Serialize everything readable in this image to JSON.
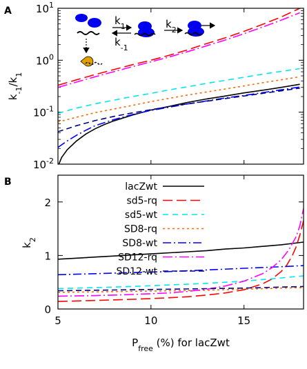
{
  "chart_data": [
    {
      "panel": "A",
      "type": "line",
      "ylabel": "k-1/k1",
      "ylabel_main": "k",
      "ylabel_sub1": "-1",
      "ylabel_mid": "/k",
      "ylabel_sub2": "1",
      "yscale": "log",
      "xlim": [
        5,
        18.2
      ],
      "ylim": [
        0.01,
        10
      ],
      "xticks": [
        5,
        10,
        15
      ],
      "yticks": [
        {
          "value": 0.01,
          "base": "10",
          "exp": "-2"
        },
        {
          "value": 0.1,
          "base": "10",
          "exp": "-1"
        },
        {
          "value": 1,
          "base": "10",
          "exp": "0"
        },
        {
          "value": 10,
          "base": "10",
          "exp": "1"
        }
      ],
      "show_xtick_labels": false,
      "inset": {
        "k1": "k",
        "k1_sub": "1",
        "km1": "k",
        "km1_sub": "-1",
        "k2": "k",
        "k2_sub": "2"
      },
      "series": [
        {
          "name": "lacZwt",
          "color": "#000000",
          "dash": "",
          "x": [
            5.05,
            5.2,
            5.5,
            6,
            6.5,
            7,
            7.5,
            8,
            9,
            10,
            11,
            12,
            13,
            14,
            15,
            16,
            17,
            18
          ],
          "y": [
            0.01,
            0.0135,
            0.019,
            0.028,
            0.038,
            0.048,
            0.058,
            0.068,
            0.088,
            0.11,
            0.13,
            0.155,
            0.18,
            0.205,
            0.235,
            0.265,
            0.3,
            0.345
          ]
        },
        {
          "name": "sd5-rq",
          "color": "#ff0000",
          "dash": "14,6",
          "x": [
            5,
            6,
            7,
            8,
            9,
            10,
            11,
            12,
            13,
            14,
            15,
            16,
            17,
            18
          ],
          "y": [
            0.33,
            0.42,
            0.53,
            0.66,
            0.82,
            1.0,
            1.25,
            1.6,
            2.1,
            2.7,
            3.6,
            4.9,
            6.8,
            10.0
          ]
        },
        {
          "name": "sd5-wt",
          "color": "#00e5ee",
          "dash": "8,6",
          "x": [
            5,
            6,
            7,
            8,
            9,
            10,
            11,
            12,
            13,
            14,
            15,
            16,
            17,
            18
          ],
          "y": [
            0.095,
            0.12,
            0.145,
            0.17,
            0.2,
            0.23,
            0.27,
            0.31,
            0.36,
            0.41,
            0.47,
            0.54,
            0.61,
            0.69
          ]
        },
        {
          "name": "SD8-rq",
          "color": "#ff6600",
          "dash": "3,4",
          "x": [
            5,
            6,
            7,
            8,
            9,
            10,
            11,
            12,
            13,
            14,
            15,
            16,
            17,
            18
          ],
          "y": [
            0.065,
            0.08,
            0.098,
            0.115,
            0.135,
            0.16,
            0.185,
            0.215,
            0.245,
            0.28,
            0.32,
            0.37,
            0.42,
            0.48
          ]
        },
        {
          "name": "SD8-wt",
          "color": "#0000ff",
          "dash": "12,4,2,4",
          "x": [
            5,
            5.5,
            6,
            6.5,
            7,
            8,
            9,
            10,
            11,
            12,
            13,
            14,
            15,
            16,
            17,
            18
          ],
          "y": [
            0.021,
            0.028,
            0.036,
            0.045,
            0.055,
            0.072,
            0.09,
            0.108,
            0.125,
            0.145,
            0.165,
            0.188,
            0.21,
            0.238,
            0.27,
            0.305
          ]
        },
        {
          "name": "SD12-rq",
          "color": "#ff00ff",
          "dash": "14,4,2,4",
          "x": [
            5,
            6,
            7,
            8,
            9,
            10,
            11,
            12,
            13,
            14,
            15,
            16,
            17,
            18
          ],
          "y": [
            0.3,
            0.38,
            0.48,
            0.6,
            0.75,
            0.93,
            1.16,
            1.47,
            1.9,
            2.45,
            3.25,
            4.35,
            5.9,
            8.2
          ]
        },
        {
          "name": "SD12-wt",
          "color": "#000080",
          "dash": "8,5",
          "x": [
            5,
            6,
            7,
            8,
            9,
            10,
            11,
            12,
            13,
            14,
            15,
            16,
            17,
            18
          ],
          "y": [
            0.042,
            0.055,
            0.069,
            0.083,
            0.097,
            0.112,
            0.128,
            0.145,
            0.163,
            0.183,
            0.205,
            0.23,
            0.258,
            0.29
          ]
        }
      ]
    },
    {
      "panel": "B",
      "type": "line",
      "xlabel": "P",
      "xlabel_sub": "free",
      "xlabel_rest": " (%) for lacZwt",
      "ylabel": "k2",
      "ylabel_main": "k",
      "ylabel_sub": "2",
      "xlim": [
        5,
        18.2
      ],
      "ylim": [
        0,
        2.5
      ],
      "xticks": [
        5,
        10,
        15
      ],
      "yticks": [
        0,
        1,
        2
      ],
      "legend": "top-left",
      "series": [
        {
          "name": "lacZwt",
          "color": "#000000",
          "dash": "",
          "x": [
            5,
            6,
            7,
            8,
            9,
            10,
            11,
            12,
            13,
            14,
            15,
            16,
            17,
            18.2
          ],
          "y": [
            0.93,
            0.95,
            0.97,
            0.99,
            1.01,
            1.03,
            1.05,
            1.07,
            1.09,
            1.12,
            1.14,
            1.17,
            1.2,
            1.25
          ]
        },
        {
          "name": "sd5-rq",
          "color": "#ff0000",
          "dash": "14,6",
          "x": [
            5,
            7,
            9,
            11,
            12,
            13,
            14,
            15,
            16,
            16.5,
            17,
            17.3,
            17.6,
            17.8,
            18,
            18.2
          ],
          "y": [
            0.14,
            0.16,
            0.18,
            0.21,
            0.23,
            0.26,
            0.3,
            0.36,
            0.47,
            0.56,
            0.7,
            0.82,
            1.0,
            1.16,
            1.38,
            1.65
          ]
        },
        {
          "name": "sd5-wt",
          "color": "#00e5ee",
          "dash": "8,6",
          "x": [
            5,
            7,
            9,
            11,
            13,
            15,
            16,
            17,
            18.2
          ],
          "y": [
            0.38,
            0.4,
            0.42,
            0.45,
            0.48,
            0.52,
            0.55,
            0.58,
            0.62
          ]
        },
        {
          "name": "SD8-rq",
          "color": "#ff6600",
          "dash": "3,4",
          "x": [
            5,
            7,
            9,
            11,
            13,
            15,
            17,
            18.2
          ],
          "y": [
            0.31,
            0.32,
            0.33,
            0.34,
            0.35,
            0.37,
            0.39,
            0.4
          ]
        },
        {
          "name": "SD8-wt",
          "color": "#0000ff",
          "dash": "12,4,2,4",
          "x": [
            5,
            7,
            9,
            11,
            13,
            15,
            17,
            18.2
          ],
          "y": [
            0.64,
            0.66,
            0.68,
            0.7,
            0.73,
            0.76,
            0.79,
            0.81
          ]
        },
        {
          "name": "SD12-rq",
          "color": "#ff00ff",
          "dash": "14,4,2,4",
          "x": [
            5,
            7,
            9,
            11,
            12,
            13,
            14,
            15,
            16,
            16.5,
            17,
            17.4,
            17.8,
            18,
            18.2
          ],
          "y": [
            0.24,
            0.25,
            0.27,
            0.3,
            0.33,
            0.37,
            0.43,
            0.52,
            0.66,
            0.77,
            0.92,
            1.1,
            1.35,
            1.55,
            1.88
          ]
        },
        {
          "name": "SD12-wt",
          "color": "#000080",
          "dash": "8,5",
          "x": [
            5,
            7,
            9,
            11,
            13,
            15,
            17,
            18.2
          ],
          "y": [
            0.34,
            0.35,
            0.36,
            0.37,
            0.38,
            0.39,
            0.41,
            0.42
          ]
        }
      ]
    }
  ]
}
